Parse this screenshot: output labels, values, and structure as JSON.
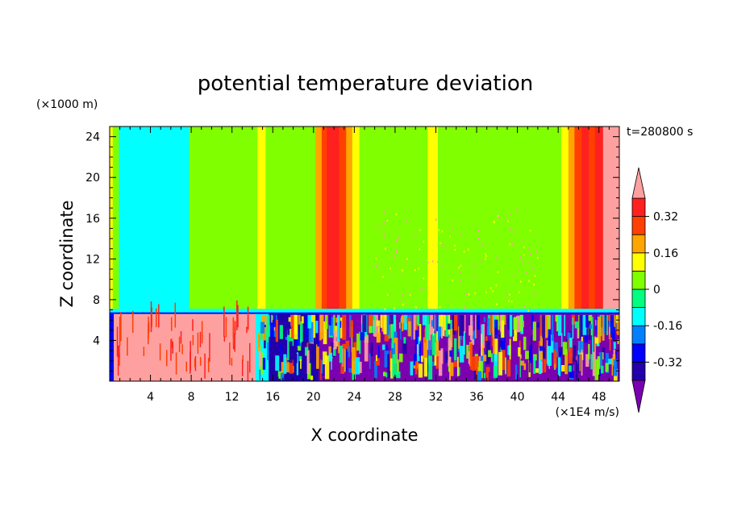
{
  "chart_data": {
    "type": "heatmap",
    "title": "potential temperature deviation",
    "xlabel": "X coordinate",
    "ylabel": "Z coordinate",
    "x_unit": "(×1E4 m/s)",
    "y_unit": "(×1000 m)",
    "time_label": "t=280800 s",
    "xlim": [
      0,
      50
    ],
    "ylim": [
      0,
      25
    ],
    "x_ticks": [
      4,
      8,
      12,
      16,
      20,
      24,
      28,
      32,
      36,
      40,
      44,
      48
    ],
    "y_ticks": [
      4,
      8,
      12,
      16,
      20,
      24
    ],
    "colorbar": {
      "levels": [
        -0.4,
        -0.32,
        -0.24,
        -0.16,
        -0.08,
        0,
        0.08,
        0.16,
        0.24,
        0.32,
        0.4
      ],
      "labels": [
        "0.32",
        "0.16",
        "0",
        "-0.16",
        "-0.32"
      ],
      "label_values": [
        0.32,
        0.16,
        0,
        -0.16,
        -0.32
      ],
      "colors": [
        "#7a00b0",
        "#2200aa",
        "#0000ff",
        "#0080ff",
        "#00ffff",
        "#00ff80",
        "#80ff00",
        "#ffff00",
        "#ffa500",
        "#ff4000",
        "#ff2020",
        "#ffa0a0"
      ]
    },
    "bands_upper": [
      {
        "x0": 0,
        "x1": 0.3,
        "value": 0.12
      },
      {
        "x0": 0.3,
        "x1": 0.9,
        "value": 0.04
      },
      {
        "x0": 0.9,
        "x1": 7.8,
        "value": -0.12
      },
      {
        "x0": 7.8,
        "x1": 14.5,
        "value": 0.04
      },
      {
        "x0": 14.5,
        "x1": 15.3,
        "value": 0.12
      },
      {
        "x0": 15.3,
        "x1": 20.2,
        "value": 0.04
      },
      {
        "x0": 20.2,
        "x1": 20.8,
        "value": 0.2
      },
      {
        "x0": 20.8,
        "x1": 21.3,
        "value": 0.28
      },
      {
        "x0": 21.3,
        "x1": 22.5,
        "value": 0.36
      },
      {
        "x0": 22.5,
        "x1": 23.2,
        "value": 0.28
      },
      {
        "x0": 23.2,
        "x1": 23.8,
        "value": 0.2
      },
      {
        "x0": 23.8,
        "x1": 24.5,
        "value": 0.12
      },
      {
        "x0": 24.5,
        "x1": 31.2,
        "value": 0.04
      },
      {
        "x0": 31.2,
        "x1": 32.2,
        "value": 0.12
      },
      {
        "x0": 32.2,
        "x1": 44.3,
        "value": 0.04
      },
      {
        "x0": 44.3,
        "x1": 45.0,
        "value": 0.12
      },
      {
        "x0": 45.0,
        "x1": 45.6,
        "value": 0.2
      },
      {
        "x0": 45.6,
        "x1": 46.3,
        "value": 0.28
      },
      {
        "x0": 46.3,
        "x1": 47.0,
        "value": 0.36
      },
      {
        "x0": 47.0,
        "x1": 47.6,
        "value": 0.28
      },
      {
        "x0": 47.6,
        "x1": 48.4,
        "value": 0.36
      },
      {
        "x0": 48.4,
        "x1": 50,
        "value": 0.44
      }
    ],
    "bands_lower": [
      {
        "x0": 0,
        "x1": 0.4,
        "value": -0.28
      },
      {
        "x0": 0.4,
        "x1": 14.3,
        "value": 0.44
      },
      {
        "x0": 14.3,
        "x1": 15.6,
        "value": -0.12
      },
      {
        "x0": 15.6,
        "x1": 20.5,
        "value": -0.36
      },
      {
        "x0": 20.5,
        "x1": 50,
        "value": -0.44
      }
    ],
    "boundary_layer_top": 6.6
  }
}
